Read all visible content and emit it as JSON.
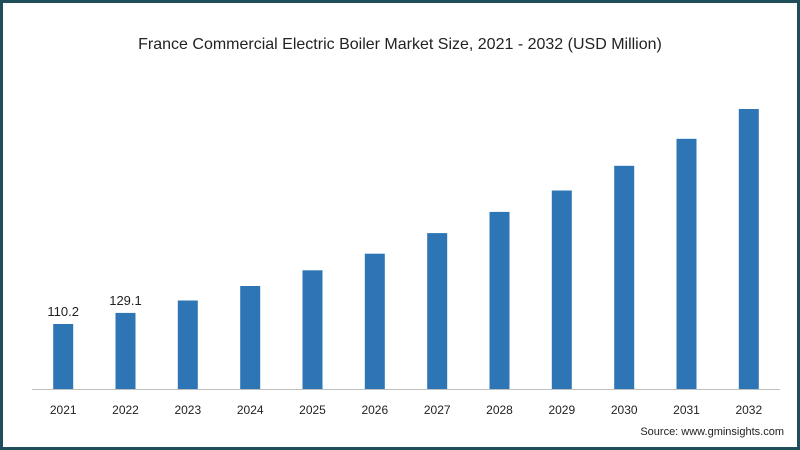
{
  "chart_data": {
    "type": "bar",
    "title": "France Commercial Electric Boiler Market Size, 2021 - 2032 (USD Million)",
    "categories": [
      "2021",
      "2022",
      "2023",
      "2024",
      "2025",
      "2026",
      "2027",
      "2028",
      "2029",
      "2030",
      "2031",
      "2032"
    ],
    "values": [
      110.2,
      129.1,
      150.2,
      174.7,
      201.4,
      229.5,
      264.4,
      300.4,
      336.8,
      378.7,
      424.5,
      475.0
    ],
    "data_labels": [
      "110.2",
      "129.1",
      null,
      null,
      null,
      null,
      null,
      null,
      null,
      null,
      null,
      null
    ],
    "ylim": [
      0,
      475
    ],
    "grid": false,
    "legend": "none",
    "bar_color": "#2e75b6"
  },
  "source": "Source: www.gminsights.com",
  "colors": {
    "frame": "#1f4e5a",
    "bar": "#2e75b6"
  }
}
